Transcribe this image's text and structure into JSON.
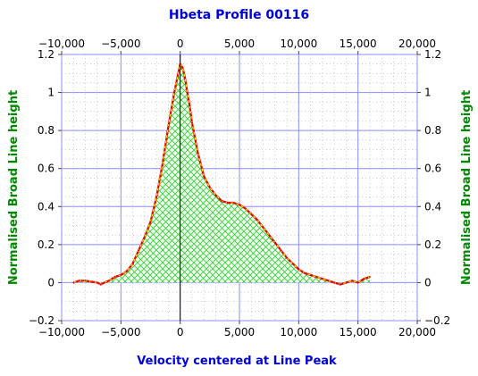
{
  "colors": {
    "title": "#0000dd",
    "xlabel": "#0000dd",
    "ylabel": "#008800",
    "major_grid": "#8c8cff",
    "minor_grid": "#aaaaaa",
    "fill_hatch": "#33cc33",
    "fill_bg": "#f0fff0",
    "line_red": "#e00000",
    "line_dash": "#ffee00",
    "zero_line": "#000000"
  },
  "chart_data": {
    "type": "area",
    "title": "Hbeta Profile 00116",
    "xlabel": "Velocity centered at Line Peak",
    "ylabel": "Normalised Broad Line height",
    "ylabel_right": "Normalised Broad Line height",
    "xlim": [
      -10000,
      20000
    ],
    "ylim": [
      -0.2,
      1.2
    ],
    "xticks": [
      -10000,
      -5000,
      0,
      5000,
      10000,
      15000,
      20000
    ],
    "xtick_labels": [
      "−10,000",
      "−5,000",
      "0",
      "5,000",
      "10,000",
      "15,000",
      "20,000"
    ],
    "yticks": [
      -0.2,
      0,
      0.2,
      0.4,
      0.6,
      0.8,
      1,
      1.2
    ],
    "ytick_labels": [
      "−0.2",
      "0",
      "0.2",
      "0.4",
      "0.6",
      "0.8",
      "1",
      "1.2"
    ],
    "grid": true,
    "series": [
      {
        "fill": "hatched",
        "x": [
          -9000,
          -8500,
          -8000,
          -7500,
          -7000,
          -6700,
          -6400,
          -6000,
          -5500,
          -5000,
          -4500,
          -4000,
          -3500,
          -3000,
          -2500,
          -2000,
          -1500,
          -1000,
          -500,
          0,
          200,
          400,
          600,
          800,
          1000,
          1500,
          2000,
          2500,
          3000,
          3500,
          4000,
          4500,
          5000,
          5500,
          6000,
          6500,
          7000,
          7500,
          8000,
          8500,
          9000,
          9500,
          10000,
          10500,
          11000,
          11500,
          12000,
          12500,
          13000,
          13500,
          14000,
          14500,
          15000,
          15500,
          16000
        ],
        "y": [
          0.0,
          0.01,
          0.01,
          0.005,
          0.0,
          -0.01,
          0.0,
          0.01,
          0.03,
          0.04,
          0.06,
          0.1,
          0.17,
          0.24,
          0.32,
          0.45,
          0.62,
          0.82,
          1.0,
          1.15,
          1.13,
          1.08,
          1.0,
          0.93,
          0.84,
          0.68,
          0.56,
          0.5,
          0.46,
          0.43,
          0.42,
          0.42,
          0.41,
          0.39,
          0.36,
          0.33,
          0.29,
          0.25,
          0.21,
          0.17,
          0.13,
          0.1,
          0.07,
          0.05,
          0.04,
          0.03,
          0.02,
          0.01,
          0.0,
          -0.01,
          0.0,
          0.01,
          0.0,
          0.02,
          0.03
        ]
      }
    ]
  }
}
